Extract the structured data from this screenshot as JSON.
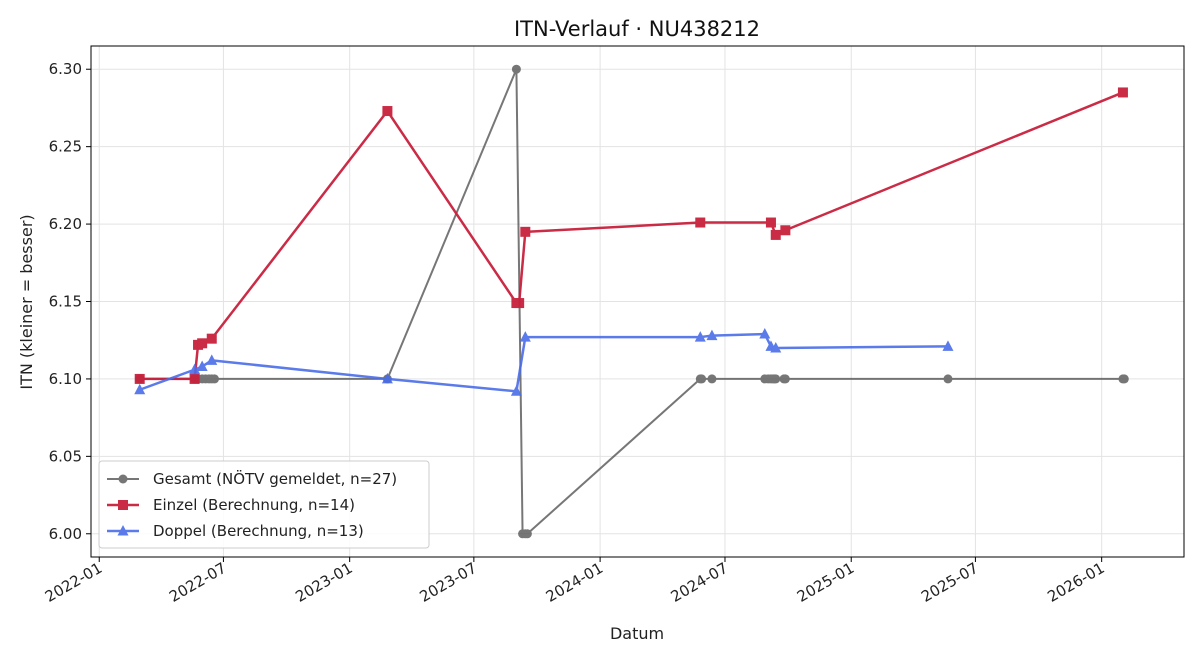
{
  "chart_data": {
    "type": "line",
    "title": "ITN-Verlauf · NU438212",
    "xlabel": "Datum",
    "ylabel": "ITN  (kleiner = besser)",
    "x_type": "date",
    "xlim": [
      "2021-12-20",
      "2026-05-01"
    ],
    "ylim": [
      5.985,
      6.315
    ],
    "x_ticks": [
      "2022-01-01",
      "2022-07-01",
      "2023-01-01",
      "2023-07-01",
      "2024-01-01",
      "2024-07-01",
      "2025-01-01",
      "2025-07-01",
      "2026-01-01"
    ],
    "x_tick_labels": [
      "2022-01",
      "2022-07",
      "2023-01",
      "2023-07",
      "2024-01",
      "2024-07",
      "2025-01",
      "2025-07",
      "2026-01"
    ],
    "y_ticks": [
      6.0,
      6.05,
      6.1,
      6.15,
      6.2,
      6.25,
      6.3
    ],
    "y_tick_labels": [
      "6.00",
      "6.05",
      "6.10",
      "6.15",
      "6.20",
      "6.25",
      "6.30"
    ],
    "grid": true,
    "legend_position": "lower-left",
    "series": [
      {
        "name": "Gesamt (NÖTV gemeldet, n=27)",
        "color": "#555555",
        "marker": "circle",
        "points": [
          {
            "x": "2022-03-01",
            "y": 6.1
          },
          {
            "x": "2022-05-20",
            "y": 6.1
          },
          {
            "x": "2022-05-25",
            "y": 6.1
          },
          {
            "x": "2022-05-31",
            "y": 6.1
          },
          {
            "x": "2022-06-05",
            "y": 6.1
          },
          {
            "x": "2022-06-10",
            "y": 6.1
          },
          {
            "x": "2022-06-14",
            "y": 6.1
          },
          {
            "x": "2022-06-18",
            "y": 6.1
          },
          {
            "x": "2023-02-25",
            "y": 6.1
          },
          {
            "x": "2023-09-01",
            "y": 6.3
          },
          {
            "x": "2023-09-10",
            "y": 6.0
          },
          {
            "x": "2023-09-14",
            "y": 6.0
          },
          {
            "x": "2023-09-17",
            "y": 6.0
          },
          {
            "x": "2024-05-26",
            "y": 6.1
          },
          {
            "x": "2024-05-28",
            "y": 6.1
          },
          {
            "x": "2024-06-12",
            "y": 6.1
          },
          {
            "x": "2024-08-28",
            "y": 6.1
          },
          {
            "x": "2024-09-02",
            "y": 6.1
          },
          {
            "x": "2024-09-06",
            "y": 6.1
          },
          {
            "x": "2024-09-09",
            "y": 6.1
          },
          {
            "x": "2024-09-11",
            "y": 6.1
          },
          {
            "x": "2024-09-13",
            "y": 6.1
          },
          {
            "x": "2024-09-25",
            "y": 6.1
          },
          {
            "x": "2024-09-27",
            "y": 6.1
          },
          {
            "x": "2025-05-22",
            "y": 6.1
          },
          {
            "x": "2026-02-01",
            "y": 6.1
          },
          {
            "x": "2026-02-03",
            "y": 6.1
          }
        ]
      },
      {
        "name": "Einzel (Berechnung, n=14)",
        "color": "#c8203c",
        "marker": "square",
        "points": [
          {
            "x": "2022-03-01",
            "y": 6.1
          },
          {
            "x": "2022-05-20",
            "y": 6.1
          },
          {
            "x": "2022-05-25",
            "y": 6.122
          },
          {
            "x": "2022-05-31",
            "y": 6.123
          },
          {
            "x": "2022-06-14",
            "y": 6.126
          },
          {
            "x": "2023-02-25",
            "y": 6.273
          },
          {
            "x": "2023-09-01",
            "y": 6.149
          },
          {
            "x": "2023-09-05",
            "y": 6.149
          },
          {
            "x": "2023-09-14",
            "y": 6.195
          },
          {
            "x": "2024-05-26",
            "y": 6.201
          },
          {
            "x": "2024-09-06",
            "y": 6.201
          },
          {
            "x": "2024-09-13",
            "y": 6.193
          },
          {
            "x": "2024-09-27",
            "y": 6.196
          },
          {
            "x": "2026-02-01",
            "y": 6.285
          }
        ]
      },
      {
        "name": "Doppel (Berechnung, n=13)",
        "color": "#4a6de8",
        "marker": "triangle",
        "points": [
          {
            "x": "2022-03-01",
            "y": 6.093
          },
          {
            "x": "2022-05-20",
            "y": 6.106
          },
          {
            "x": "2022-05-31",
            "y": 6.108
          },
          {
            "x": "2022-06-14",
            "y": 6.112
          },
          {
            "x": "2023-02-25",
            "y": 6.1
          },
          {
            "x": "2023-09-01",
            "y": 6.092
          },
          {
            "x": "2023-09-14",
            "y": 6.127
          },
          {
            "x": "2024-05-26",
            "y": 6.127
          },
          {
            "x": "2024-06-12",
            "y": 6.128
          },
          {
            "x": "2024-08-28",
            "y": 6.129
          },
          {
            "x": "2024-09-06",
            "y": 6.121
          },
          {
            "x": "2024-09-13",
            "y": 6.12
          },
          {
            "x": "2025-05-22",
            "y": 6.121
          }
        ]
      }
    ]
  }
}
